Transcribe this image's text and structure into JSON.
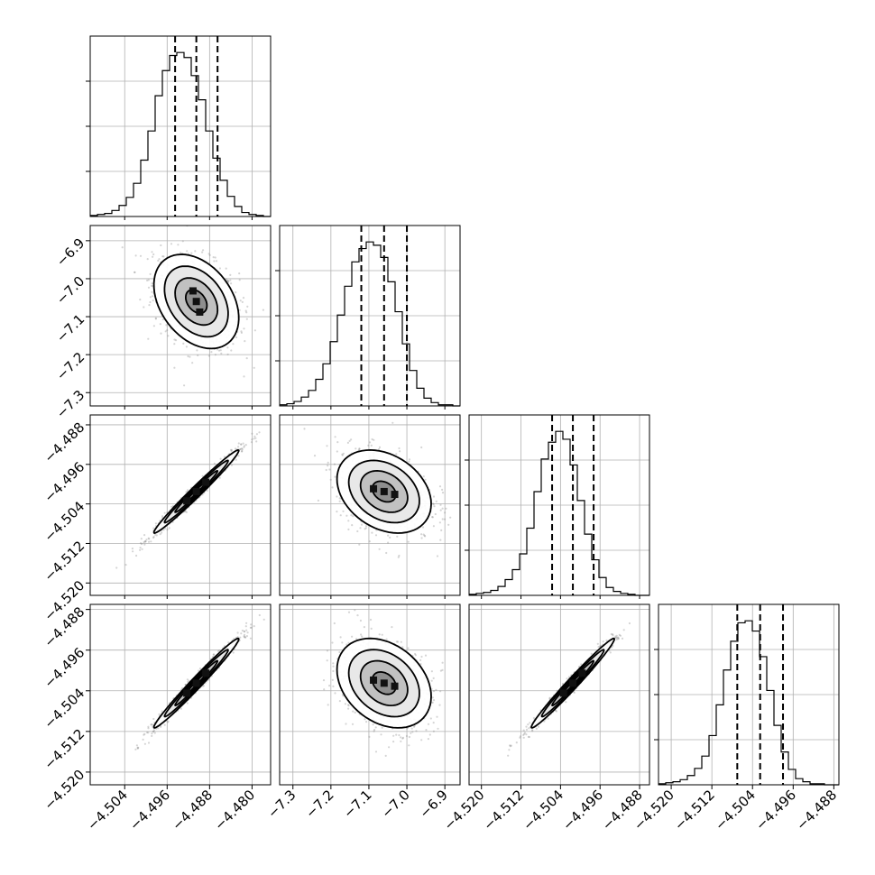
{
  "chart_data": {
    "type": "corner",
    "parameters": [
      {
        "id": "p0",
        "range": [
          -4.5105,
          -4.4765
        ],
        "ticks": [
          -4.504,
          -4.496,
          -4.488,
          -4.48
        ],
        "tick_labels": [
          "−4.504",
          "−4.496",
          "−4.488",
          "−4.480"
        ],
        "median": -4.4905,
        "q16": -4.4945,
        "q84": -4.4865,
        "sigma": 0.004
      },
      {
        "id": "p1",
        "range": [
          -7.335,
          -6.86
        ],
        "ticks": [
          -7.3,
          -7.2,
          -7.1,
          -7.0,
          -6.9
        ],
        "tick_labels": [
          "−7.3",
          "−7.2",
          "−7.1",
          "−7.0",
          "−6.9"
        ],
        "median": -7.06,
        "q16": -7.12,
        "q84": -7.0,
        "sigma": 0.062
      },
      {
        "id": "p2",
        "range": [
          -4.5225,
          -4.486
        ],
        "ticks": [
          -4.52,
          -4.512,
          -4.504,
          -4.496,
          -4.488
        ],
        "tick_labels": [
          "−4.520",
          "−4.512",
          "−4.504",
          "−4.496",
          "−4.488"
        ],
        "median": -4.5015,
        "q16": -4.5057,
        "q84": -4.4973,
        "sigma": 0.0042
      },
      {
        "id": "p3",
        "range": [
          -4.5225,
          -4.487
        ],
        "ticks": [
          -4.52,
          -4.512,
          -4.504,
          -4.496,
          -4.488
        ],
        "tick_labels": [
          "−4.520",
          "−4.512",
          "−4.504",
          "−4.496",
          "−4.488"
        ],
        "median": -4.5025,
        "q16": -4.507,
        "q84": -4.498,
        "sigma": 0.0044
      }
    ],
    "histograms": [
      {
        "param": 0,
        "edges_start": -4.5105,
        "bin_width": 0.00136,
        "counts": [
          1,
          2,
          3,
          6,
          11,
          19,
          33,
          56,
          85,
          120,
          145,
          160,
          163,
          158,
          140,
          116,
          85,
          58,
          36,
          20,
          10,
          4,
          2,
          1,
          0
        ]
      },
      {
        "param": 1,
        "edges_start": -7.335,
        "bin_width": 0.019,
        "counts": [
          1,
          2,
          4,
          8,
          14,
          24,
          38,
          58,
          82,
          108,
          130,
          142,
          148,
          145,
          134,
          112,
          85,
          56,
          32,
          16,
          7,
          3,
          1,
          1,
          0
        ]
      },
      {
        "param": 2,
        "edges_start": -4.5225,
        "bin_width": 0.00146,
        "counts": [
          1,
          2,
          3,
          5,
          9,
          16,
          26,
          42,
          68,
          105,
          138,
          155,
          166,
          158,
          132,
          96,
          62,
          36,
          18,
          8,
          4,
          2,
          1,
          0,
          0
        ]
      },
      {
        "param": 3,
        "edges_start": -4.5225,
        "bin_width": 0.00142,
        "counts": [
          1,
          2,
          3,
          5,
          9,
          16,
          28,
          48,
          78,
          112,
          140,
          158,
          160,
          150,
          125,
          92,
          58,
          32,
          15,
          6,
          3,
          1,
          1,
          0,
          0
        ]
      }
    ],
    "correlations": [
      {
        "row": 1,
        "col": 0,
        "rho": -0.35
      },
      {
        "row": 2,
        "col": 0,
        "rho": 0.985
      },
      {
        "row": 2,
        "col": 1,
        "rho": -0.3
      },
      {
        "row": 3,
        "col": 0,
        "rho": 0.985
      },
      {
        "row": 3,
        "col": 1,
        "rho": -0.3
      },
      {
        "row": 3,
        "col": 2,
        "rho": 0.985
      }
    ],
    "contour_levels_sigma": [
      0.5,
      1.0,
      1.5,
      2.0
    ],
    "grid": true,
    "quantile_lines": "dashed",
    "colors": {
      "points": "#888888",
      "fill": "#4a4a4a",
      "line": "#000000",
      "grid": "#b0b0b0"
    }
  }
}
